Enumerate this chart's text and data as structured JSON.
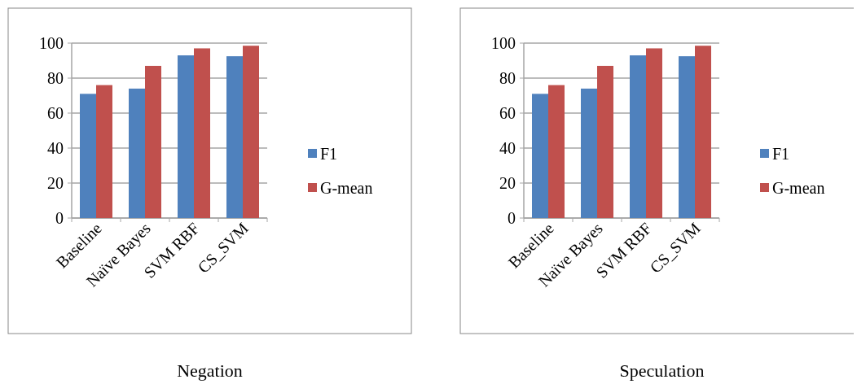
{
  "chart_data": [
    {
      "type": "bar",
      "title": "Negation",
      "categories": [
        "Baseline",
        "Naïve Bayes",
        "SVM RBF",
        "CS_SVM"
      ],
      "series": [
        {
          "name": "F1",
          "color": "#4f81bd",
          "values": [
            71,
            74,
            93,
            92.5
          ]
        },
        {
          "name": "G-mean",
          "color": "#c0504d",
          "values": [
            76,
            87,
            97,
            98.5
          ]
        }
      ],
      "ylim": [
        0,
        100
      ],
      "yticks": [
        0,
        20,
        40,
        60,
        80,
        100
      ],
      "grid": "y",
      "legend": "right"
    },
    {
      "type": "bar",
      "title": "Speculation",
      "categories": [
        "Baseline",
        "Naïve Bayes",
        "SVM RBF",
        "CS_SVM"
      ],
      "series": [
        {
          "name": "F1",
          "color": "#4f81bd",
          "values": [
            71,
            74,
            93,
            92.5
          ]
        },
        {
          "name": "G-mean",
          "color": "#c0504d",
          "values": [
            76,
            87,
            97,
            98.5
          ]
        }
      ],
      "ylim": [
        0,
        100
      ],
      "yticks": [
        0,
        20,
        40,
        60,
        80,
        100
      ],
      "grid": "y",
      "legend": "right"
    }
  ]
}
